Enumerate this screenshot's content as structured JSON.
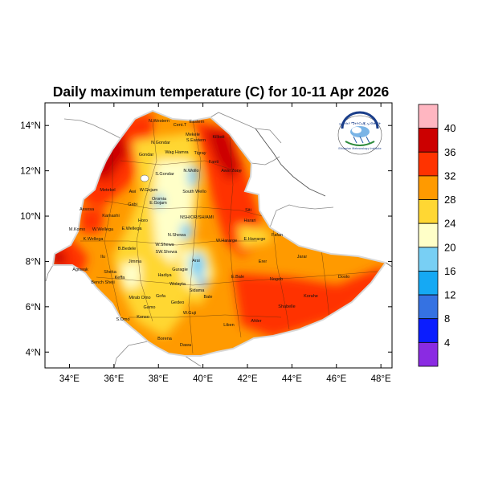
{
  "title": "Daily maximum temperature (C) for 10-11 Apr 2026",
  "map": {
    "lon_range": [
      32.9,
      48.5
    ],
    "lat_range": [
      3.3,
      15.0
    ],
    "x_ticks": [
      "34°E",
      "36°E",
      "38°E",
      "40°E",
      "42°E",
      "44°E",
      "46°E",
      "48°E"
    ],
    "y_ticks": [
      "4°N",
      "6°N",
      "8°N",
      "10°N",
      "12°N",
      "14°N"
    ],
    "region_labels": [
      "N.Western",
      "Cent.T",
      "Eastern",
      "Kilbati",
      "Mekele",
      "N.Gondar",
      "S.Eastern",
      "Wag Hamra",
      "Tigray",
      "Gondar",
      "Fanti",
      "S.Gondar",
      "N.Wollo",
      "Awsi Zone",
      "Metekel",
      "Awi",
      "W.Gojam",
      "South Wello",
      "Oromia",
      "E.Gojam",
      "Gabi",
      "Assosa",
      "Kamashi",
      "Horo",
      "NSH/OR/SH/AMI",
      "Siti",
      "Harari",
      "E.Harrarge",
      "Fafan",
      "M.Komo",
      "W.Wellega",
      "E.Wellega",
      "N.Shewa",
      "K.Wellega",
      "B.Bedele",
      "W.Hararge",
      "W.Shewa",
      "Ilu",
      "Jimma",
      "SW.Shewa",
      "Arsi",
      "Erer",
      "Jarar",
      "Agnwak",
      "Sheka",
      "Keffa",
      "Guragie",
      "Hadiya",
      "Bench Sheji",
      "E.Bale",
      "Nogob",
      "Doolo",
      "Mirab Omo",
      "Gofa",
      "Wolayta",
      "Sidama",
      "Korahe",
      "Gamo",
      "Gedeo",
      "Bale",
      "Shabelle",
      "S.Omo",
      "Konso",
      "W.Guji",
      "Liben",
      "Afder",
      "Borena",
      "Dawa"
    ],
    "logo": {
      "name": "national-meteorology-agency-logo",
      "text_top": "ኢትዮጵያ ሜትዮሮሎጂ ኢንስቲትዩት",
      "text_bottom": "Ethiopian Meteorology Institute"
    }
  },
  "legend": {
    "labels": [
      "40",
      "36",
      "32",
      "28",
      "24",
      "20",
      "16",
      "12",
      "8",
      "4"
    ],
    "colors": [
      "#ffb6c1",
      "#cc0000",
      "#ff3300",
      "#ff9a00",
      "#ffd733",
      "#ffffc8",
      "#78cff4",
      "#15a9f4",
      "#3572e2",
      "#0b1dfe",
      "#8a2be2"
    ],
    "bin_edges": [
      4,
      8,
      12,
      16,
      20,
      24,
      28,
      32,
      36,
      40
    ]
  }
}
